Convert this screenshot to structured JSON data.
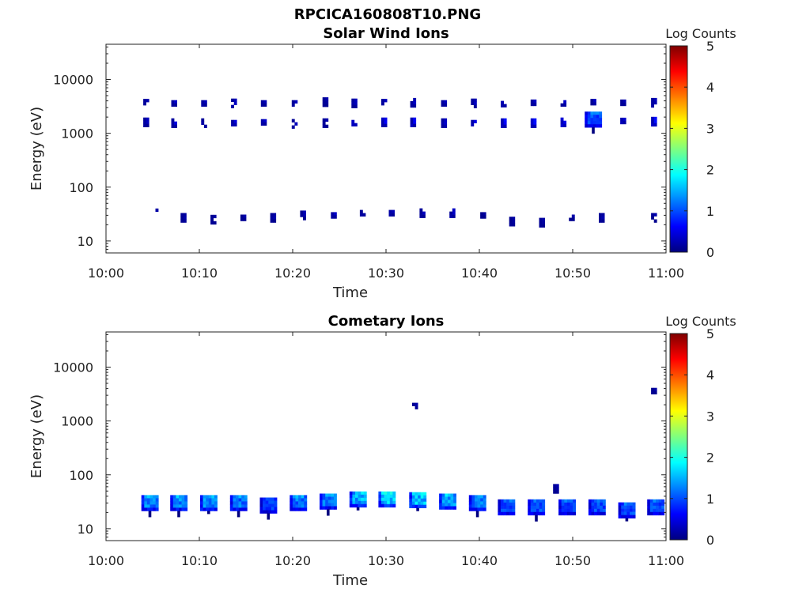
{
  "figure_title": "RPCICA160808T10.PNG",
  "colors": {
    "colormap": [
      "#00007f",
      "#0000ff",
      "#007fff",
      "#00ffff",
      "#7fff7f",
      "#ffff00",
      "#ff7f00",
      "#ff0000",
      "#7f0000"
    ],
    "axis": "#222222"
  },
  "chart_data": [
    {
      "type": "heatmap",
      "title": "Solar Wind Ions",
      "xlabel": "Time",
      "ylabel": "Energy (eV)",
      "y_scale": "log",
      "ylim": [
        6,
        45000
      ],
      "xlim": [
        "10:00",
        "11:00"
      ],
      "x_ticks": [
        "10:00",
        "10:10",
        "10:20",
        "10:30",
        "10:40",
        "10:50",
        "11:00"
      ],
      "y_ticks": [
        "10",
        "100",
        "1000",
        "10000"
      ],
      "colorbar": {
        "label": "Log Counts",
        "range": [
          0,
          5
        ],
        "ticks": [
          "0",
          "1",
          "2",
          "3",
          "4",
          "5"
        ]
      },
      "bursts": [
        {
          "time_min": 4.3,
          "bands": [
            {
              "energy_ev": 3800,
              "log_counts": 0.3
            },
            {
              "energy_ev": 1600,
              "log_counts": 0.3
            }
          ]
        },
        {
          "time_min": 5.3,
          "bands": [
            {
              "energy_ev": 35,
              "log_counts": 0.2
            }
          ]
        },
        {
          "time_min": 7.3,
          "bands": [
            {
              "energy_ev": 3600,
              "log_counts": 0.3
            },
            {
              "energy_ev": 1550,
              "log_counts": 0.4
            }
          ]
        },
        {
          "time_min": 8.3,
          "bands": [
            {
              "energy_ev": 27,
              "log_counts": 0.2
            }
          ]
        },
        {
          "time_min": 10.5,
          "bands": [
            {
              "energy_ev": 3600,
              "log_counts": 0.3
            },
            {
              "energy_ev": 1550,
              "log_counts": 0.3
            }
          ]
        },
        {
          "time_min": 11.5,
          "bands": [
            {
              "energy_ev": 25,
              "log_counts": 0.2
            }
          ]
        },
        {
          "time_min": 13.7,
          "bands": [
            {
              "energy_ev": 3600,
              "log_counts": 0.3
            },
            {
              "energy_ev": 1550,
              "log_counts": 0.4
            }
          ]
        },
        {
          "time_min": 14.7,
          "bands": [
            {
              "energy_ev": 27,
              "log_counts": 0.2
            }
          ]
        },
        {
          "time_min": 16.9,
          "bands": [
            {
              "energy_ev": 3600,
              "log_counts": 0.3
            },
            {
              "energy_ev": 1600,
              "log_counts": 0.4
            }
          ]
        },
        {
          "time_min": 17.9,
          "bands": [
            {
              "energy_ev": 27,
              "log_counts": 0.2
            }
          ]
        },
        {
          "time_min": 20.2,
          "bands": [
            {
              "energy_ev": 3600,
              "log_counts": 0.3
            },
            {
              "energy_ev": 1500,
              "log_counts": 0.3
            }
          ]
        },
        {
          "time_min": 21.1,
          "bands": [
            {
              "energy_ev": 30,
              "log_counts": 0.2
            }
          ]
        },
        {
          "time_min": 23.5,
          "bands": [
            {
              "energy_ev": 3800,
              "log_counts": 0.2
            },
            {
              "energy_ev": 1550,
              "log_counts": 0.3
            }
          ]
        },
        {
          "time_min": 24.4,
          "bands": [
            {
              "energy_ev": 30,
              "log_counts": 0.3
            }
          ]
        },
        {
          "time_min": 26.6,
          "bands": [
            {
              "energy_ev": 3600,
              "log_counts": 0.3
            },
            {
              "energy_ev": 1550,
              "log_counts": 0.6
            }
          ]
        },
        {
          "time_min": 27.5,
          "bands": [
            {
              "energy_ev": 33,
              "log_counts": 0.3
            }
          ]
        },
        {
          "time_min": 29.8,
          "bands": [
            {
              "energy_ev": 3800,
              "log_counts": 0.3
            },
            {
              "energy_ev": 1600,
              "log_counts": 0.5
            }
          ]
        },
        {
          "time_min": 30.6,
          "bands": [
            {
              "energy_ev": 33,
              "log_counts": 0.3
            }
          ]
        },
        {
          "time_min": 32.9,
          "bands": [
            {
              "energy_ev": 3700,
              "log_counts": 0.3
            },
            {
              "energy_ev": 1600,
              "log_counts": 0.5
            }
          ]
        },
        {
          "time_min": 33.9,
          "bands": [
            {
              "energy_ev": 33,
              "log_counts": 0.3
            }
          ]
        },
        {
          "time_min": 36.2,
          "bands": [
            {
              "energy_ev": 3600,
              "log_counts": 0.3
            },
            {
              "energy_ev": 1550,
              "log_counts": 0.4
            }
          ]
        },
        {
          "time_min": 37.1,
          "bands": [
            {
              "energy_ev": 33,
              "log_counts": 0.3
            }
          ]
        },
        {
          "time_min": 39.4,
          "bands": [
            {
              "energy_ev": 3600,
              "log_counts": 0.3
            },
            {
              "energy_ev": 1550,
              "log_counts": 0.5
            }
          ]
        },
        {
          "time_min": 40.4,
          "bands": [
            {
              "energy_ev": 30,
              "log_counts": 0.2
            }
          ]
        },
        {
          "time_min": 42.6,
          "bands": [
            {
              "energy_ev": 3500,
              "log_counts": 0.4
            },
            {
              "energy_ev": 1550,
              "log_counts": 0.6
            }
          ]
        },
        {
          "time_min": 43.5,
          "bands": [
            {
              "energy_ev": 23,
              "log_counts": 0.2
            }
          ]
        },
        {
          "time_min": 45.8,
          "bands": [
            {
              "energy_ev": 3700,
              "log_counts": 0.3
            },
            {
              "energy_ev": 1550,
              "log_counts": 0.6
            }
          ]
        },
        {
          "time_min": 46.7,
          "bands": [
            {
              "energy_ev": 22,
              "log_counts": 0.2
            }
          ]
        },
        {
          "time_min": 49.0,
          "bands": [
            {
              "energy_ev": 3600,
              "log_counts": 0.3
            },
            {
              "energy_ev": 1600,
              "log_counts": 0.7
            }
          ]
        },
        {
          "time_min": 49.9,
          "bands": [
            {
              "energy_ev": 27,
              "log_counts": 0.2
            }
          ]
        },
        {
          "time_min": 52.2,
          "bands": [
            {
              "energy_ev": 3800,
              "log_counts": 0.3
            },
            {
              "energy_ev": 1800,
              "log_counts": 1.0
            }
          ]
        },
        {
          "time_min": 53.1,
          "bands": [
            {
              "energy_ev": 27,
              "log_counts": 0.2
            }
          ]
        },
        {
          "time_min": 55.4,
          "bands": [
            {
              "energy_ev": 3700,
              "log_counts": 0.3
            },
            {
              "energy_ev": 1700,
              "log_counts": 0.5
            }
          ]
        },
        {
          "time_min": 58.7,
          "bands": [
            {
              "energy_ev": 3700,
              "log_counts": 0.3
            },
            {
              "energy_ev": 1650,
              "log_counts": 0.6
            },
            {
              "energy_ev": 27,
              "log_counts": 0.2
            }
          ]
        }
      ]
    },
    {
      "type": "heatmap",
      "title": "Cometary Ions",
      "xlabel": "Time",
      "ylabel": "Energy (eV)",
      "y_scale": "log",
      "ylim": [
        6,
        45000
      ],
      "xlim": [
        "10:00",
        "11:00"
      ],
      "x_ticks": [
        "10:00",
        "10:10",
        "10:20",
        "10:30",
        "10:40",
        "10:50",
        "11:00"
      ],
      "y_ticks": [
        "10",
        "100",
        "1000",
        "10000"
      ],
      "colorbar": {
        "label": "Log Counts",
        "range": [
          0,
          5
        ],
        "ticks": [
          "0",
          "1",
          "2",
          "3",
          "4",
          "5"
        ]
      },
      "bursts": [
        {
          "time_min": 4.7,
          "energy_ev": 30,
          "log_counts": 1.3
        },
        {
          "time_min": 7.8,
          "energy_ev": 30,
          "log_counts": 1.3
        },
        {
          "time_min": 11.0,
          "energy_ev": 30,
          "log_counts": 1.3
        },
        {
          "time_min": 14.2,
          "energy_ev": 30,
          "log_counts": 1.2
        },
        {
          "time_min": 17.4,
          "energy_ev": 27,
          "log_counts": 0.9
        },
        {
          "time_min": 20.6,
          "energy_ev": 30,
          "log_counts": 1.2
        },
        {
          "time_min": 23.8,
          "energy_ev": 32,
          "log_counts": 1.2
        },
        {
          "time_min": 27.0,
          "energy_ev": 35,
          "log_counts": 1.5
        },
        {
          "time_min": 30.1,
          "energy_ev": 35,
          "log_counts": 1.6
        },
        {
          "time_min": 33.4,
          "energy_ev": 34,
          "log_counts": 1.6
        },
        {
          "time_min": 33.1,
          "energy_ev": 1900,
          "log_counts": 0.2
        },
        {
          "time_min": 36.6,
          "energy_ev": 32,
          "log_counts": 1.4
        },
        {
          "time_min": 39.8,
          "energy_ev": 30,
          "log_counts": 1.2
        },
        {
          "time_min": 42.9,
          "energy_ev": 25,
          "log_counts": 1.0
        },
        {
          "time_min": 46.1,
          "energy_ev": 25,
          "log_counts": 1.0
        },
        {
          "time_min": 48.2,
          "energy_ev": 55,
          "log_counts": 0.2
        },
        {
          "time_min": 49.4,
          "energy_ev": 25,
          "log_counts": 1.0
        },
        {
          "time_min": 52.6,
          "energy_ev": 25,
          "log_counts": 1.0
        },
        {
          "time_min": 55.8,
          "energy_ev": 22,
          "log_counts": 1.0
        },
        {
          "time_min": 58.9,
          "energy_ev": 25,
          "log_counts": 1.0
        },
        {
          "time_min": 58.7,
          "energy_ev": 3600,
          "log_counts": 0.2
        }
      ]
    }
  ]
}
